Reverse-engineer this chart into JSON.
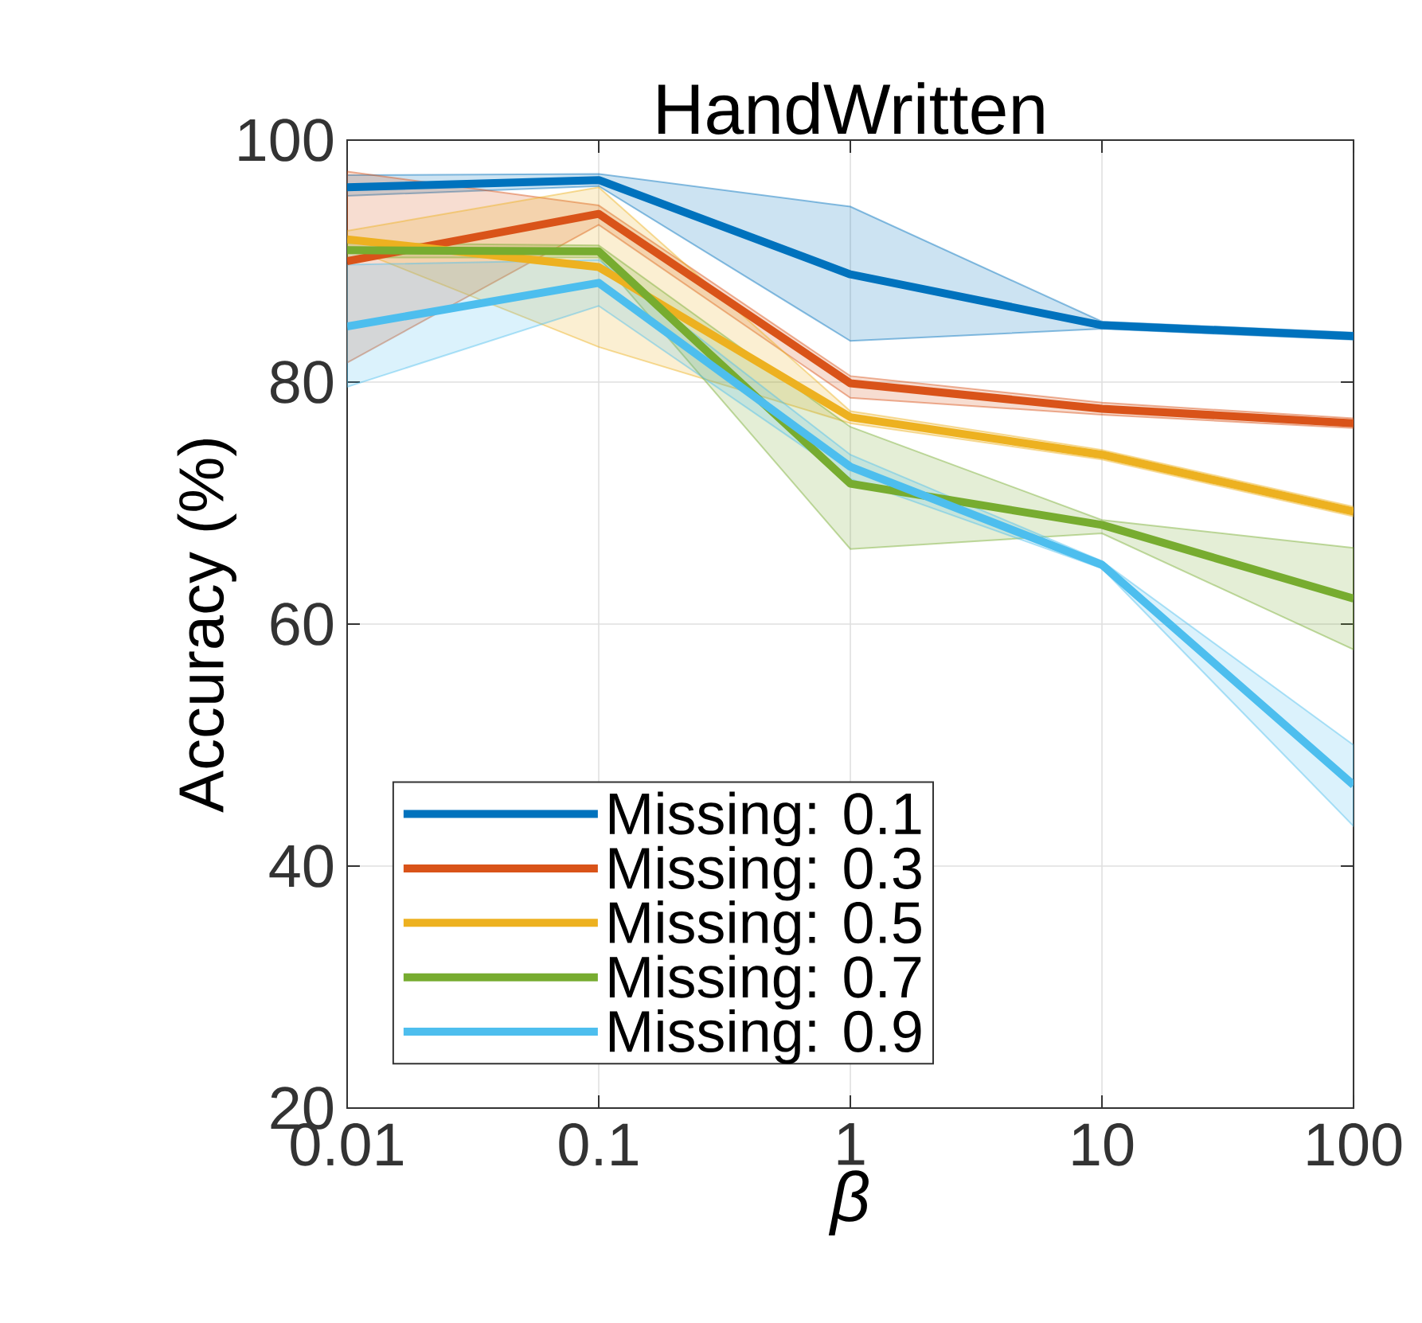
{
  "chart_data": {
    "type": "line",
    "title": "HandWritten",
    "xlabel": "β",
    "ylabel": "Accuracy (%)",
    "x": [
      0.01,
      0.1,
      1,
      10,
      100
    ],
    "series": [
      {
        "name": "Missing: 0.1",
        "color": "#0072bd",
        "values": [
          96.1,
          96.7,
          88.9,
          84.7,
          83.8
        ],
        "lower": [
          95.4,
          96.2,
          83.4,
          84.4,
          83.5
        ],
        "upper": [
          97.1,
          97.2,
          94.5,
          85.0,
          84.1
        ]
      },
      {
        "name": "Missing: 0.3",
        "color": "#d95319",
        "values": [
          90.0,
          93.9,
          79.9,
          77.8,
          76.6
        ],
        "lower": [
          81.6,
          93.0,
          78.7,
          77.3,
          76.2
        ],
        "upper": [
          97.4,
          94.6,
          80.5,
          78.3,
          77.0
        ]
      },
      {
        "name": "Missing: 0.5",
        "color": "#edb120",
        "values": [
          91.8,
          89.5,
          77.1,
          74.0,
          69.3
        ],
        "lower": [
          91.2,
          82.9,
          76.6,
          73.6,
          68.9
        ],
        "upper": [
          92.5,
          96.1,
          77.6,
          74.4,
          69.7
        ]
      },
      {
        "name": "Missing: 0.7",
        "color": "#77ac30",
        "values": [
          90.9,
          90.8,
          71.6,
          68.2,
          62.1
        ],
        "lower": [
          90.3,
          90.3,
          66.2,
          67.5,
          57.9
        ],
        "upper": [
          91.5,
          91.3,
          76.3,
          68.6,
          66.3
        ]
      },
      {
        "name": "Missing: 0.9",
        "color": "#4dbeee",
        "values": [
          84.6,
          88.2,
          73.0,
          64.9,
          46.7
        ],
        "lower": [
          79.6,
          86.3,
          72.0,
          64.6,
          43.3
        ],
        "upper": [
          89.7,
          90.1,
          74.0,
          65.2,
          50.0
        ]
      }
    ],
    "xlim": [
      0.01,
      100
    ],
    "ylim": [
      20,
      100
    ],
    "xticks": [
      0.01,
      0.1,
      1,
      10,
      100
    ],
    "yticks": [
      20,
      40,
      60,
      80,
      100
    ],
    "log": "x",
    "grid": true,
    "legend": "bottom left",
    "line_style": "solid"
  }
}
